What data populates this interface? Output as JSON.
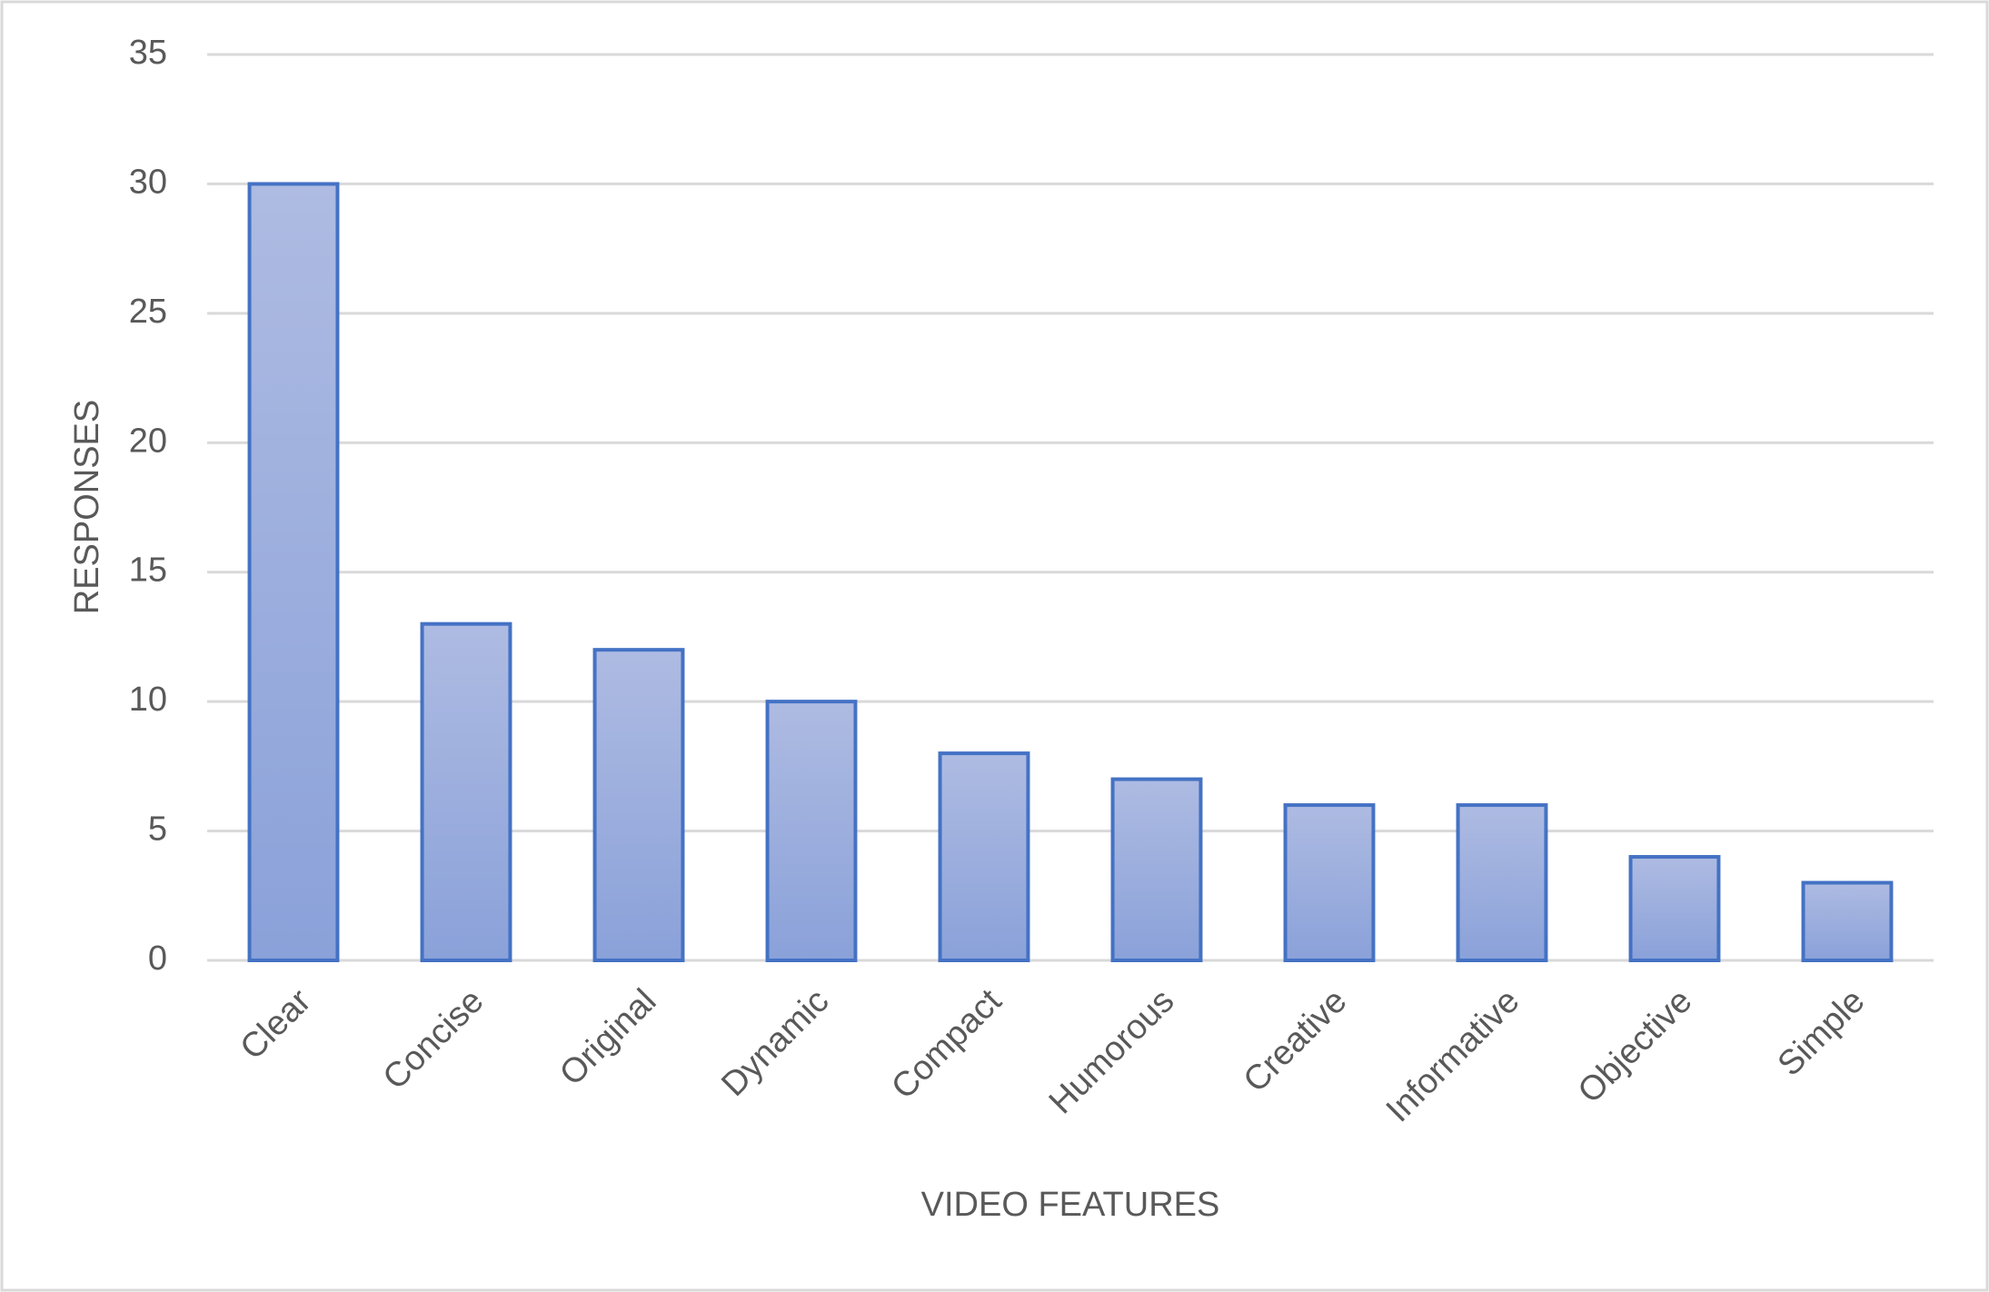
{
  "chart_data": {
    "type": "bar",
    "x_label": "VIDEO FEATURES",
    "y_label": "RESPONSES",
    "categories": [
      "Clear",
      "Concise",
      "Original",
      "Dynamic",
      "Compact",
      "Humorous",
      "Creative",
      "Informative",
      "Objective",
      "Simple"
    ],
    "values": [
      30,
      13,
      12,
      10,
      8,
      7,
      6,
      6,
      4,
      3
    ],
    "color": "#4472c4",
    "ylim": [
      0,
      35
    ],
    "yticks": [
      0,
      5,
      10,
      15,
      20,
      25,
      30,
      35
    ],
    "grid": true
  }
}
